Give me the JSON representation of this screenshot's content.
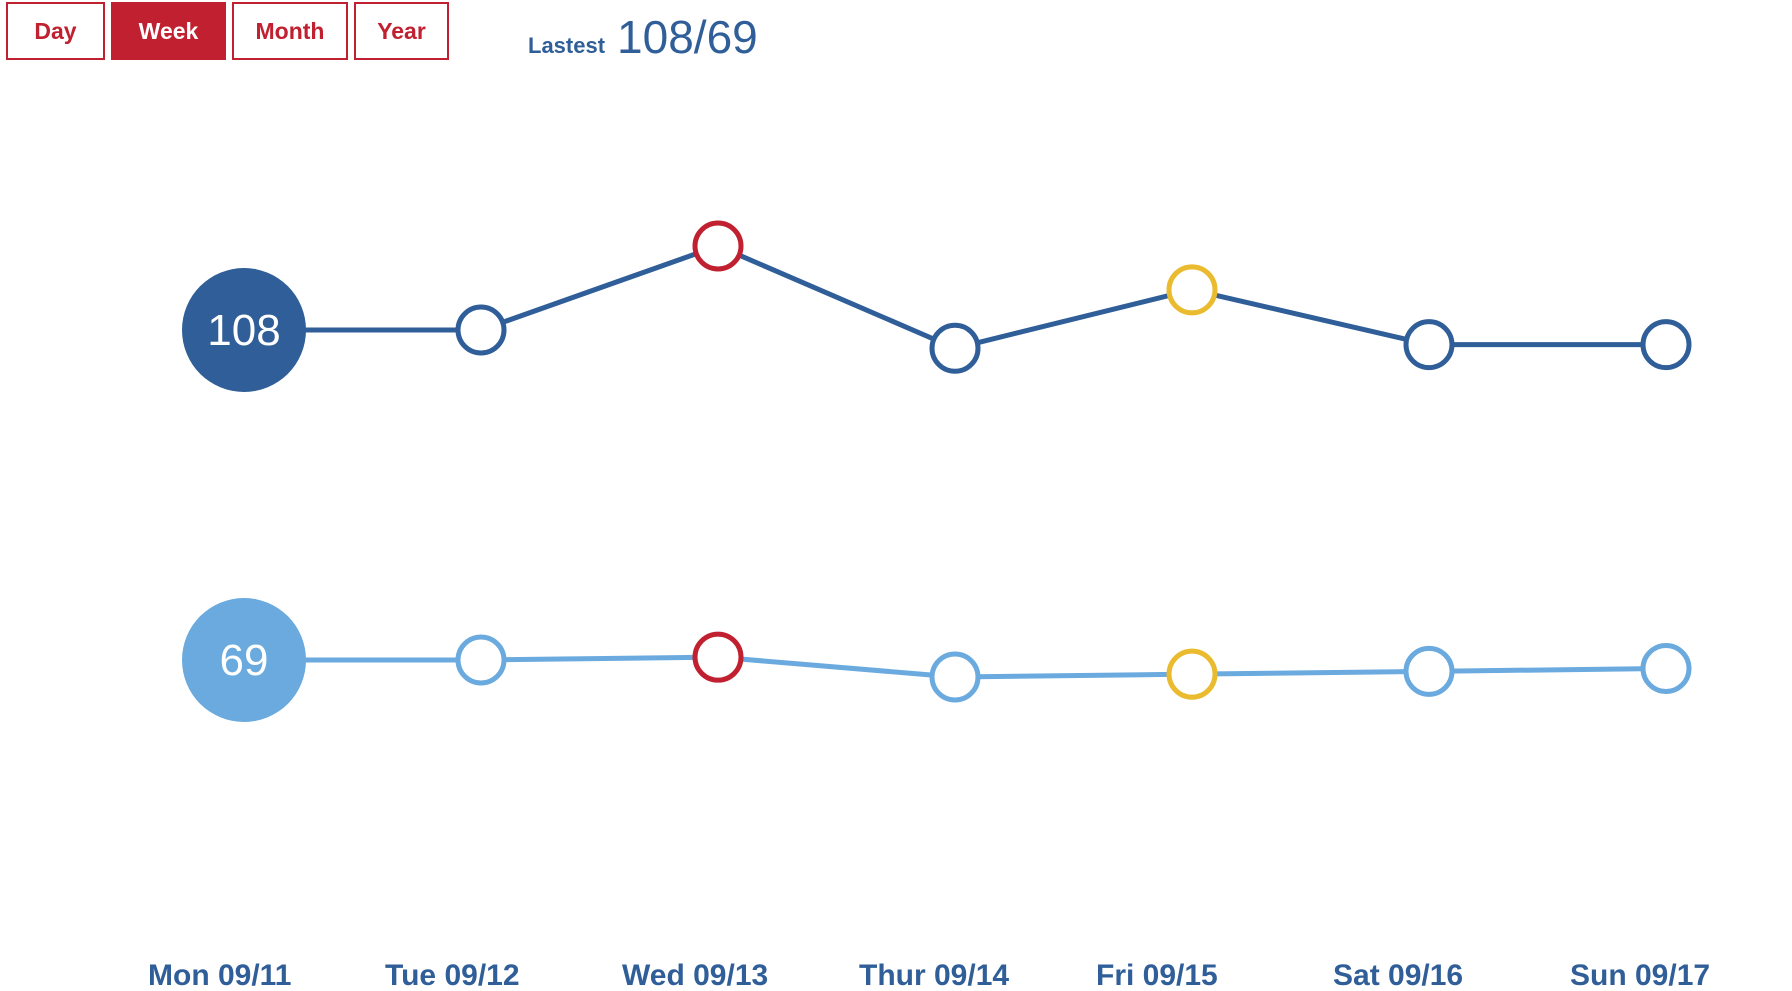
{
  "tabs": [
    {
      "label": "Day",
      "active": false
    },
    {
      "label": "Week",
      "active": true
    },
    {
      "label": "Month",
      "active": false
    },
    {
      "label": "Year",
      "active": false
    }
  ],
  "latest": {
    "label": "Lastest",
    "value": "108/69"
  },
  "colors": {
    "accent": "#c0202f",
    "systolic": "#2f5e98",
    "diastolic": "#6aaade",
    "high": "#c0202f",
    "elevated": "#eabb2e"
  },
  "chart_data": {
    "type": "line",
    "categories": [
      "Mon 09/11",
      "Tue 09/12",
      "Wed 09/13",
      "Thur 09/14",
      "Fri 09/15",
      "Sat 09/16",
      "Sun 09/17"
    ],
    "series": [
      {
        "values": [
          108,
          108,
          131,
          103,
          119,
          104,
          104
        ],
        "status": [
          "normal",
          "normal",
          "high",
          "normal",
          "elevated",
          "normal",
          "normal"
        ]
      },
      {
        "values": [
          69,
          69,
          70,
          63,
          64,
          65,
          66
        ],
        "status": [
          "normal",
          "normal",
          "high",
          "normal",
          "elevated",
          "normal",
          "normal"
        ]
      }
    ],
    "grid": false
  }
}
